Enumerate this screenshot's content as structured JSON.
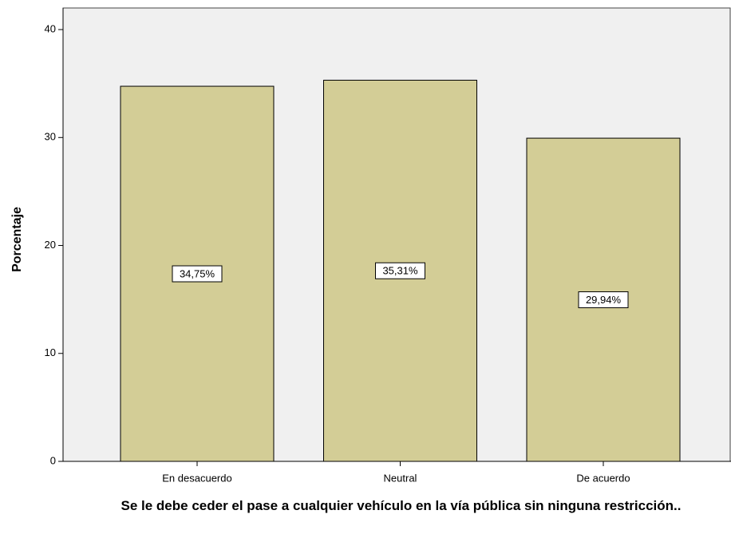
{
  "chart_data": {
    "type": "bar",
    "x_label": "Se le debe ceder el pase a cualquier vehículo en la vía pública sin ninguna restricción..",
    "y_label": "Porcentaje",
    "categories": [
      "En desacuerdo",
      "Neutral",
      "De acuerdo"
    ],
    "values": [
      34.75,
      35.31,
      29.94
    ],
    "value_labels": [
      "34,75%",
      "35,31%",
      "29,94%"
    ],
    "color": "#d3cd96",
    "ylim": [
      0,
      42
    ],
    "yticks": [
      0,
      10,
      20,
      30,
      40
    ],
    "grid": false
  }
}
